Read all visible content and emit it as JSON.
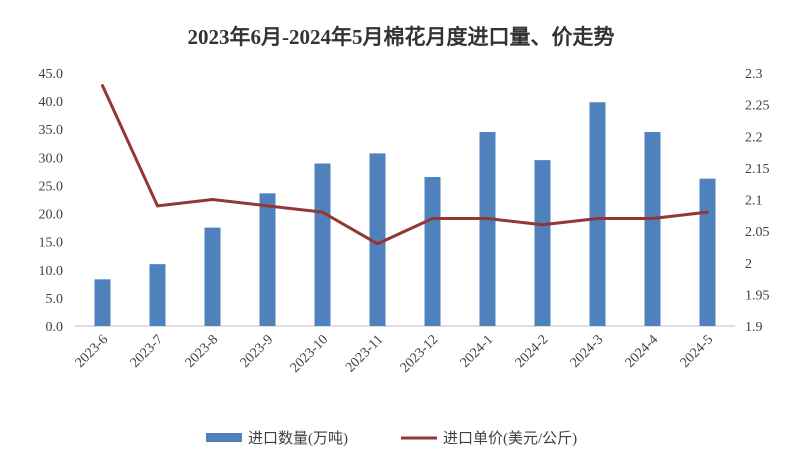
{
  "chart_data": {
    "type": "bar+line",
    "title": "2023年6月-2024年5月棉花月度进口量、价走势",
    "categories": [
      "2023-6",
      "2023-7",
      "2023-8",
      "2023-9",
      "2023-10",
      "2023-11",
      "2023-12",
      "2024-1",
      "2024-2",
      "2024-3",
      "2024-4",
      "2024-5"
    ],
    "series": [
      {
        "name": "进口数量(万吨)",
        "type": "bar",
        "axis": "left",
        "color": "#4f81bd",
        "values": [
          8.3,
          11.0,
          17.5,
          23.6,
          28.9,
          30.7,
          26.5,
          34.5,
          29.5,
          39.8,
          34.5,
          26.2
        ]
      },
      {
        "name": "进口单价(美元/公斤)",
        "type": "line",
        "axis": "right",
        "color": "#943634",
        "values": [
          2.28,
          2.09,
          2.1,
          2.09,
          2.08,
          2.03,
          2.07,
          2.07,
          2.06,
          2.07,
          2.07,
          2.08
        ]
      }
    ],
    "y_left": {
      "min": 0,
      "max": 45,
      "ticks": [
        "0.0",
        "5.0",
        "10.0",
        "15.0",
        "20.0",
        "25.0",
        "30.0",
        "35.0",
        "40.0",
        "45.0"
      ]
    },
    "y_right": {
      "min": 1.9,
      "max": 2.3,
      "ticks": [
        "1.9",
        "1.95",
        "2",
        "2.05",
        "2.1",
        "2.15",
        "2.2",
        "2.25",
        "2.3"
      ]
    },
    "grid": false,
    "legend_position": "bottom"
  }
}
